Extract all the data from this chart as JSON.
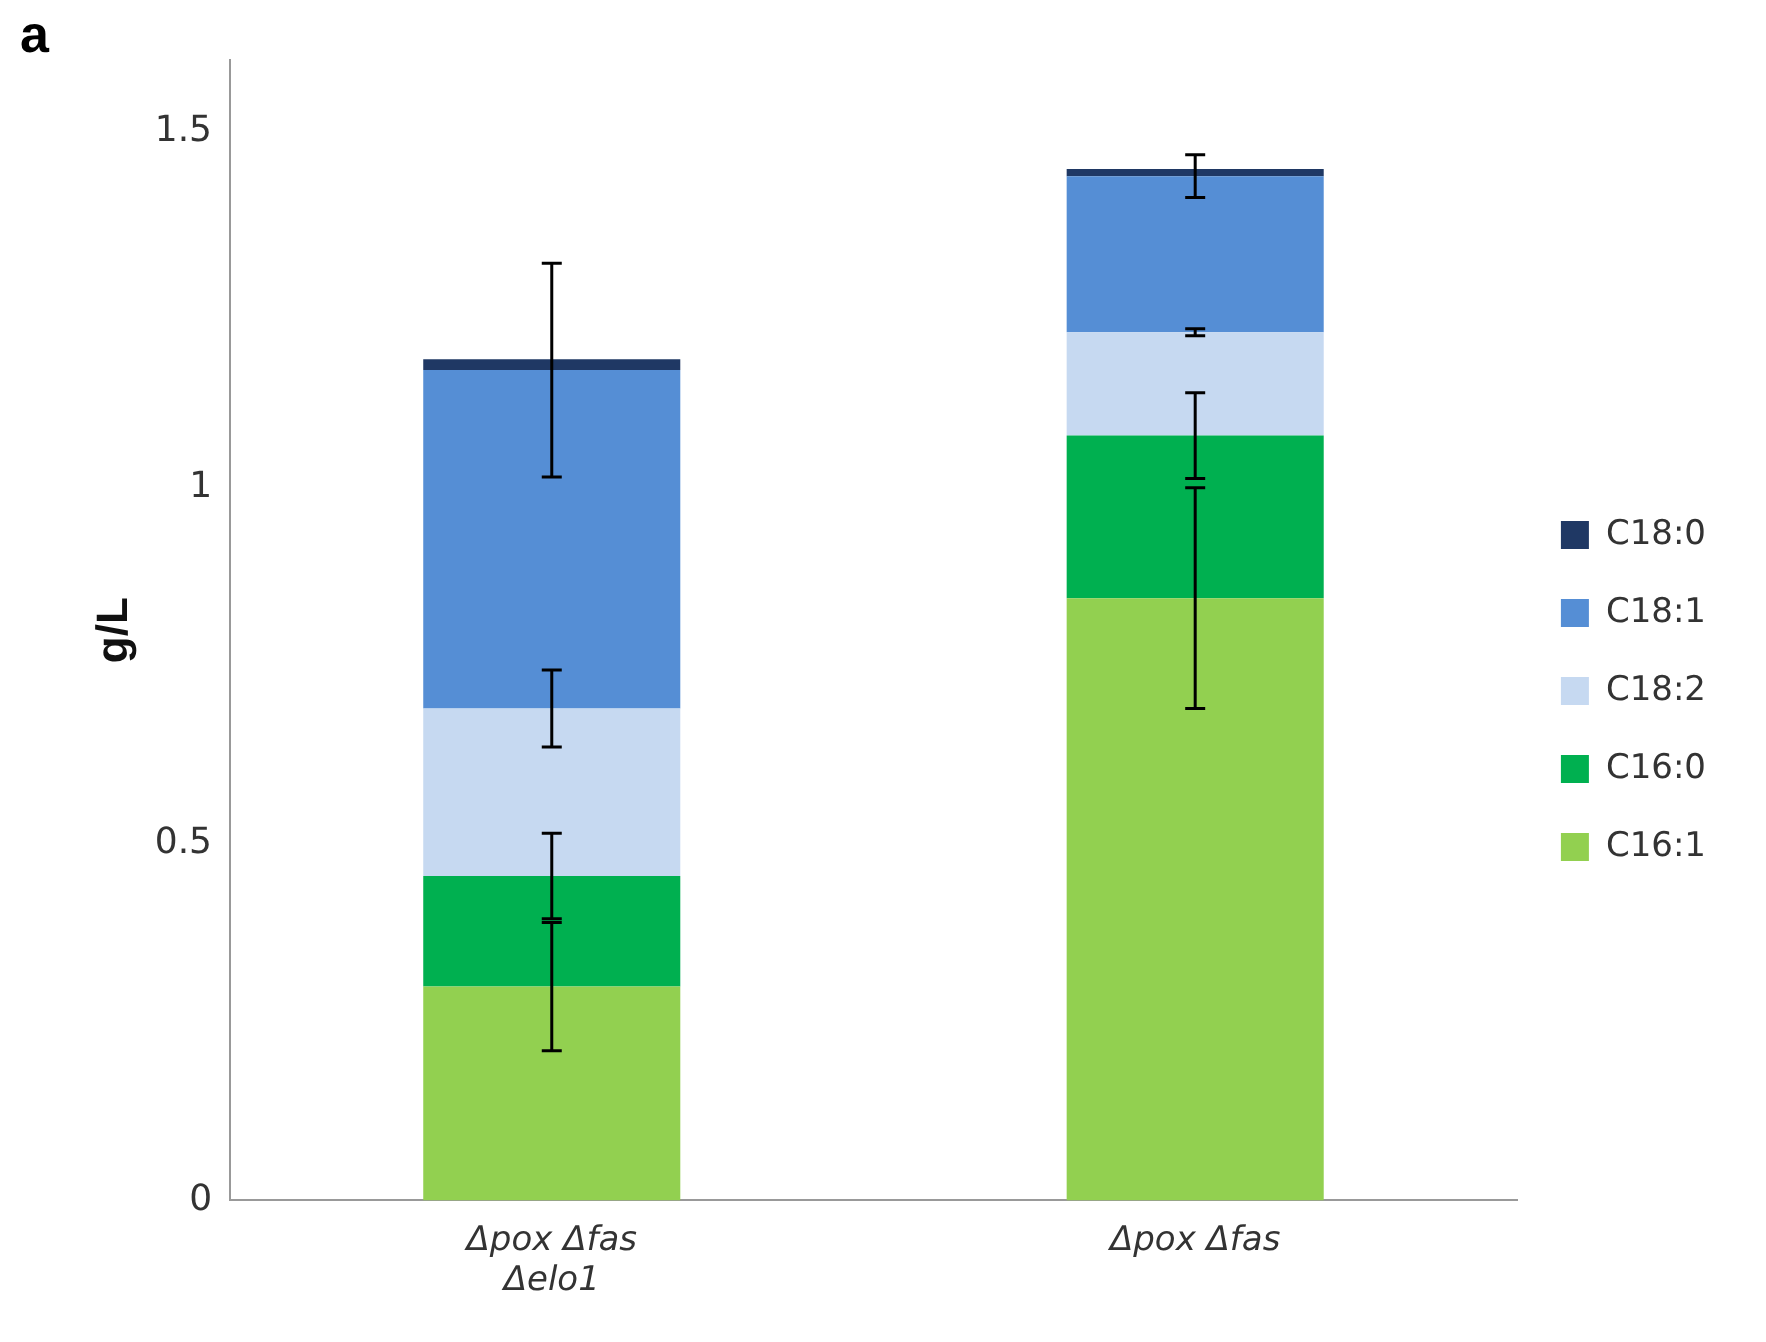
{
  "chart_data": {
    "type": "bar",
    "stacked": true,
    "ylabel": "g/L",
    "annotations": [
      "a"
    ],
    "categories": [
      "Δpox Δfas Δelo1",
      "Δpox Δfas"
    ],
    "ylim": [
      0,
      1.6
    ],
    "yticks": [
      0,
      0.5,
      1,
      1.5
    ],
    "grid": false,
    "legend": "right",
    "series": [
      {
        "name": "C16:1",
        "color": "#92d050",
        "values": [
          0.3,
          0.845
        ],
        "errors": [
          0.09,
          0.155
        ]
      },
      {
        "name": "C16:0",
        "color": "#00b050",
        "values": [
          0.155,
          0.228
        ],
        "errors": [
          0.06,
          0.06
        ]
      },
      {
        "name": "C18:2",
        "color": "#c6d9f1",
        "values": [
          0.235,
          0.145
        ],
        "errors": [
          0.054,
          0.005
        ]
      },
      {
        "name": "C18:1",
        "color": "#558ed5",
        "values": [
          0.475,
          0.219
        ],
        "errors": [
          0.15,
          0.03
        ]
      },
      {
        "name": "C18:0",
        "color": "#1f3864",
        "values": [
          0.015,
          0.01
        ],
        "errors": [
          null,
          null
        ]
      }
    ]
  }
}
